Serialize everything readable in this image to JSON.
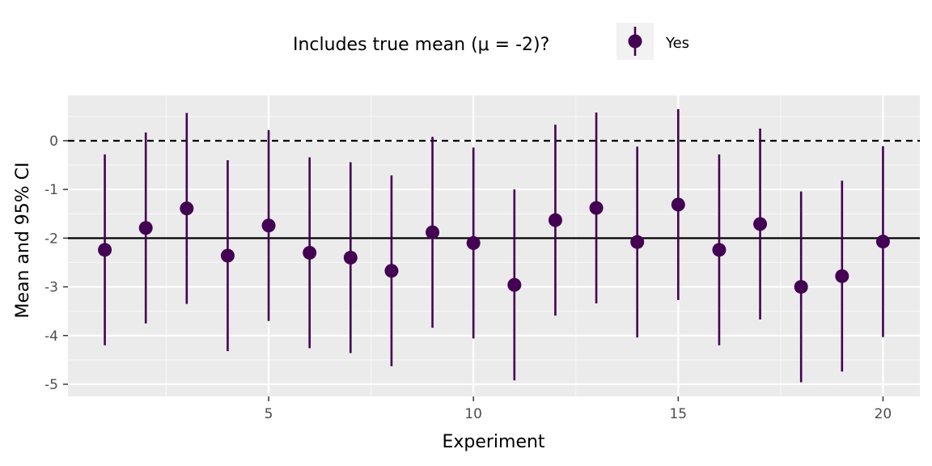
{
  "chart_data": {
    "type": "scatter",
    "xlabel": "Experiment",
    "ylabel": "Mean and 95% CI",
    "x_ticks": [
      5,
      10,
      15,
      20
    ],
    "y_ticks": [
      0,
      -1,
      -2,
      -3,
      -4,
      -5
    ],
    "xlim": [
      0.1,
      20.9
    ],
    "ylim": [
      -5.25,
      0.93
    ],
    "reference_lines": [
      {
        "y": 0,
        "style": "dashed"
      },
      {
        "y": -2,
        "style": "solid"
      }
    ],
    "legend": {
      "title": "Includes true mean (μ = -2)?",
      "entries": [
        {
          "label": "Yes",
          "color": "#440154"
        }
      ],
      "position": "top"
    },
    "series": [
      {
        "name": "Yes",
        "color": "#440154",
        "x": [
          1,
          2,
          3,
          4,
          5,
          6,
          7,
          8,
          9,
          10,
          11,
          12,
          13,
          14,
          15,
          16,
          17,
          18,
          19,
          20
        ],
        "y": [
          -2.24,
          -1.79,
          -1.39,
          -2.36,
          -1.74,
          -2.3,
          -2.4,
          -2.67,
          -1.88,
          -2.1,
          -2.96,
          -1.63,
          -1.38,
          -2.08,
          -1.31,
          -2.24,
          -1.71,
          -3.0,
          -2.78,
          -2.07
        ],
        "lower": [
          -4.2,
          -3.75,
          -3.35,
          -4.32,
          -3.7,
          -4.26,
          -4.36,
          -4.63,
          -3.84,
          -4.06,
          -4.92,
          -3.59,
          -3.34,
          -4.04,
          -3.27,
          -4.2,
          -3.67,
          -4.96,
          -4.74,
          -4.03
        ],
        "upper": [
          -0.28,
          0.17,
          0.57,
          -0.4,
          0.22,
          -0.34,
          -0.44,
          -0.71,
          0.08,
          -0.14,
          -1.0,
          0.33,
          0.58,
          -0.12,
          0.65,
          -0.28,
          0.25,
          -1.04,
          -0.82,
          -0.11
        ]
      }
    ],
    "grid": true
  }
}
